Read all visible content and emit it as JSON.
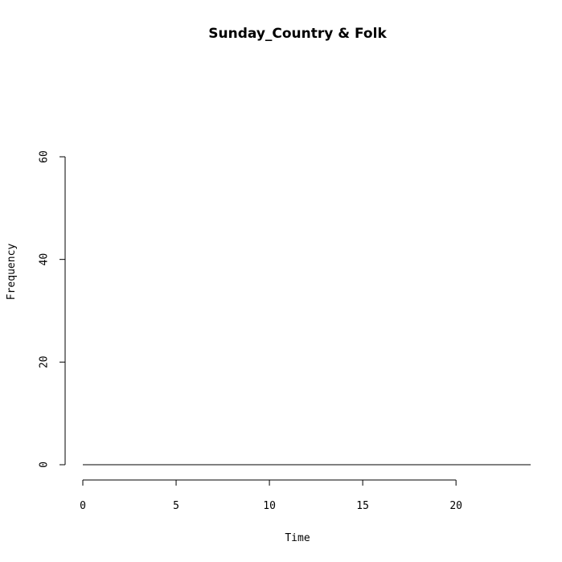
{
  "chart_data": {
    "type": "line",
    "title": "Sunday_Country & Folk",
    "xlabel": "Time",
    "ylabel": "Frequency",
    "xlim": [
      0,
      24
    ],
    "ylim": [
      0,
      60
    ],
    "x_ticks": [
      0,
      5,
      10,
      15,
      20
    ],
    "y_ticks": [
      0,
      20,
      40,
      60
    ],
    "grid": false,
    "legend": "none",
    "series": [
      {
        "color": "#000000",
        "x": [
          0,
          1,
          2,
          3,
          4,
          5,
          6,
          7,
          8,
          9,
          10,
          11,
          12,
          13,
          14,
          15,
          16,
          17,
          18,
          19,
          20,
          21,
          22,
          23,
          24
        ],
        "values": [
          0,
          0,
          0,
          0,
          0,
          0,
          0,
          0,
          0,
          0,
          0,
          0,
          0,
          0,
          0,
          0,
          0,
          0,
          0,
          0,
          0,
          0,
          0,
          0,
          0
        ]
      }
    ]
  }
}
